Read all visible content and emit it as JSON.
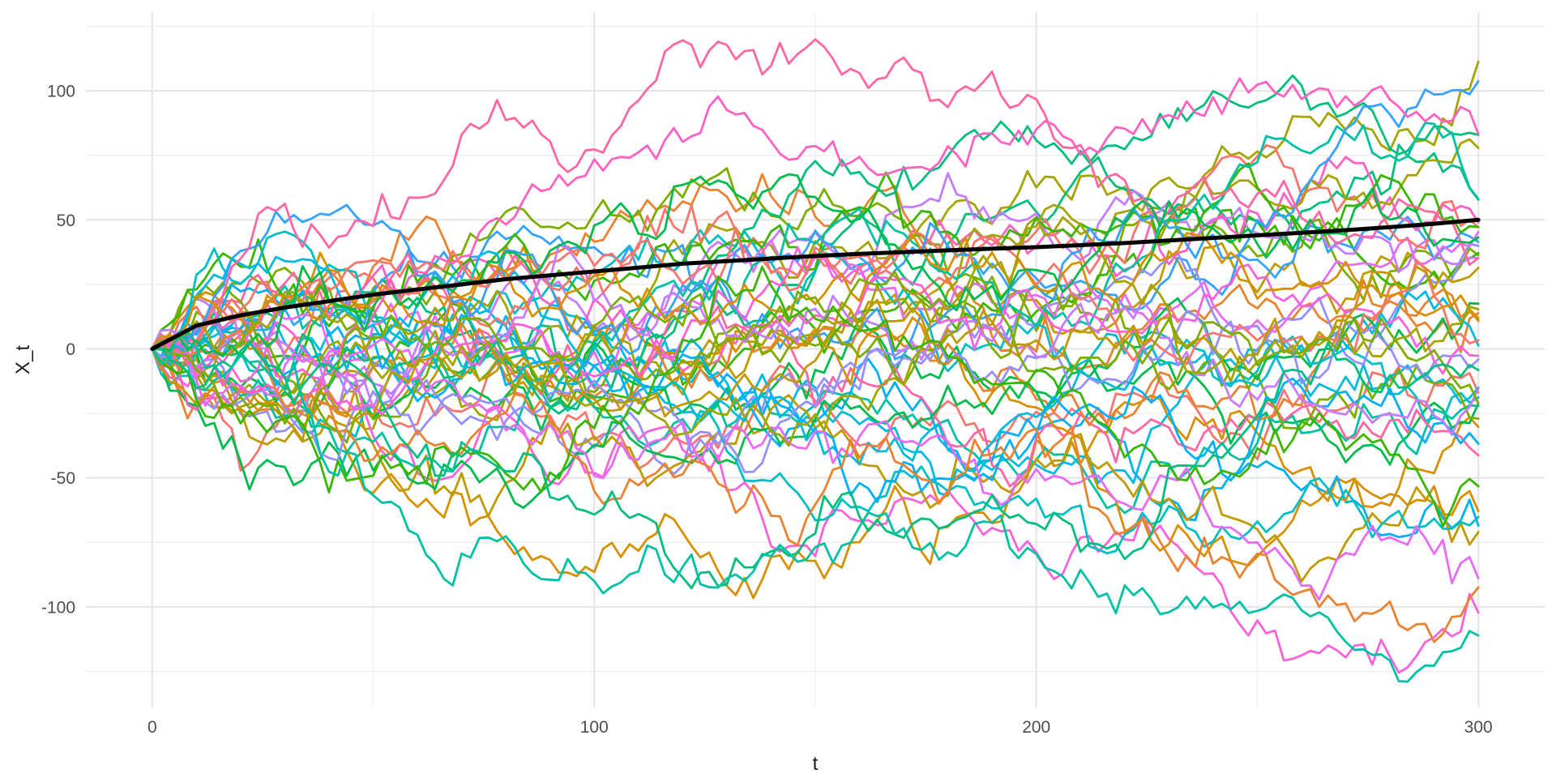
{
  "chart_data": {
    "type": "line",
    "title": "",
    "xlabel": "t",
    "ylabel": "X_t",
    "x_ticks": [
      0,
      100,
      200,
      300
    ],
    "x_minor_ticks": [
      50,
      150,
      250
    ],
    "y_ticks": [
      -100,
      -50,
      0,
      50,
      100
    ],
    "y_minor_ticks": [
      -125,
      -75,
      -25,
      25,
      75,
      125
    ],
    "x_domain": [
      -15,
      315
    ],
    "y_domain": [
      -139,
      130.5
    ],
    "x_data_range": [
      0,
      300
    ],
    "y_data_range": [
      -128,
      118
    ],
    "grid": {
      "major_color": "#e4e4e4",
      "minor_color": "#efefef",
      "major_width": 2,
      "minor_width": 1.4,
      "grid_on": true
    },
    "background": "#ffffff",
    "tick_label_color": "#4d4d4d",
    "axis_title_color": "#1a1a1a",
    "legend": "none",
    "series_kind": "simulated-random-walks",
    "num_paths": 50,
    "n_segments": 150,
    "dt": 2,
    "step_sd": 4.95,
    "seed": 42,
    "reflect_upper": 120,
    "reflect_lower": -131,
    "path_stroke_width": 2.8,
    "palette": [
      "#F8766D",
      "#EA8331",
      "#D89000",
      "#C09B00",
      "#A3A500",
      "#7CAE00",
      "#39B600",
      "#00BB4E",
      "#00BF7D",
      "#00C1A3",
      "#00BFC4",
      "#00BAE0",
      "#00B0F6",
      "#35A2FF",
      "#9590FF",
      "#C77CFF",
      "#E76BF3",
      "#FA62DB",
      "#FF61C3",
      "#FF67A4"
    ],
    "mean_line": {
      "name": "mean-path",
      "color": "#000000",
      "width": 5,
      "points": [
        [
          0,
          0
        ],
        [
          10,
          9
        ],
        [
          20,
          13
        ],
        [
          30,
          16
        ],
        [
          40,
          18.5
        ],
        [
          50,
          21
        ],
        [
          60,
          23
        ],
        [
          70,
          25
        ],
        [
          80,
          27
        ],
        [
          90,
          28.5
        ],
        [
          100,
          30
        ],
        [
          110,
          31.5
        ],
        [
          120,
          33
        ],
        [
          130,
          34
        ],
        [
          140,
          35
        ],
        [
          150,
          36
        ],
        [
          160,
          36.8
        ],
        [
          170,
          37.5
        ],
        [
          180,
          38.2
        ],
        [
          190,
          38.8
        ],
        [
          200,
          39.4
        ],
        [
          210,
          40.2
        ],
        [
          220,
          41
        ],
        [
          230,
          42
        ],
        [
          240,
          43
        ],
        [
          250,
          44
        ],
        [
          260,
          45
        ],
        [
          270,
          46
        ],
        [
          280,
          47.2
        ],
        [
          290,
          48.5
        ],
        [
          300,
          50
        ]
      ]
    }
  }
}
